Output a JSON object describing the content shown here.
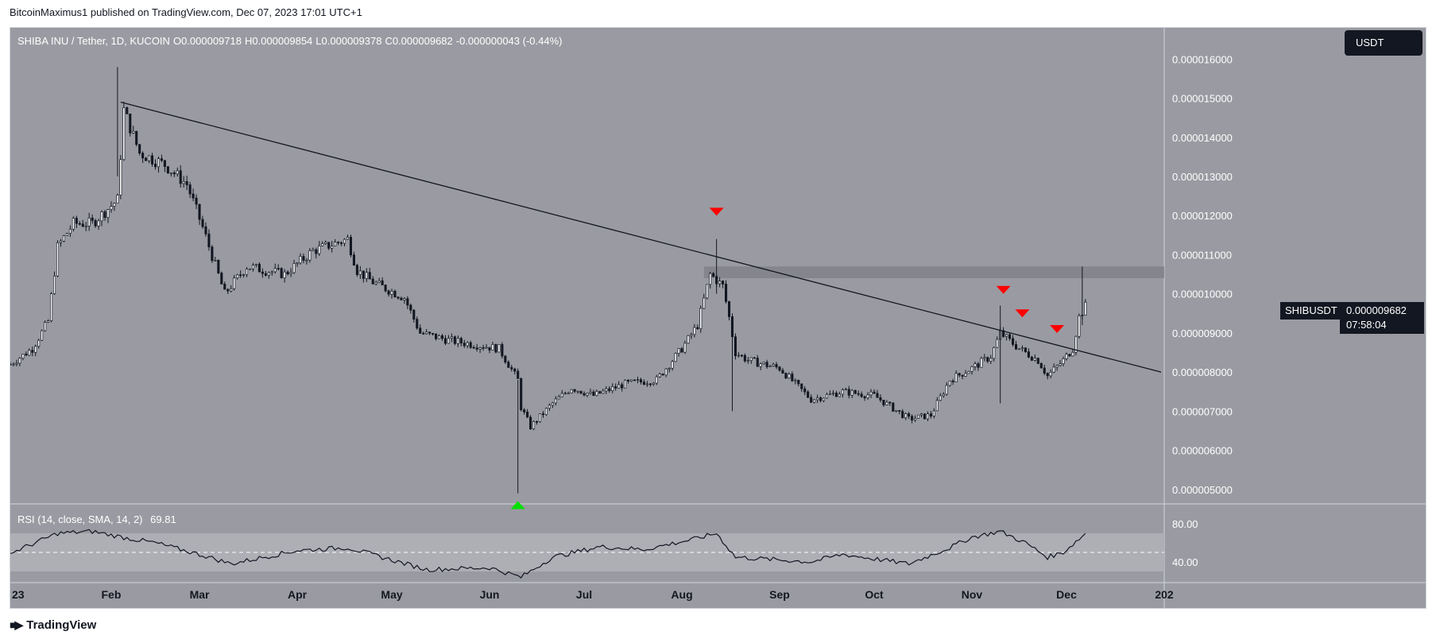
{
  "header": {
    "note": "BitcoinMaximus1 published on TradingView.com, Dec 07, 2023 17:01 UTC+1"
  },
  "ohlc": {
    "symbol_line": "SHIBA INU / Tether, 1D, KUCOIN",
    "o_label": "O",
    "o_value": "0.000009718",
    "h_label": "H",
    "h_value": "0.000009854",
    "l_label": "L",
    "l_value": "0.000009378",
    "c_label": "C",
    "c_value": "0.000009682",
    "change": "-0.000000043 (-0.44%)"
  },
  "currency": "USDT",
  "price_tag": {
    "ticker": "SHIBUSDT",
    "price": "0.000009682",
    "countdown": "07:58:04"
  },
  "rsi": {
    "legend": "RSI (14, close, SMA, 14, 2)",
    "value": "69.81",
    "upper_label": "80.00",
    "lower_label": "40.00"
  },
  "footer": {
    "brand": "TradingView"
  },
  "colors": {
    "background": "#9a9ba2",
    "candle": "#131722",
    "resistance_band": "#85868d",
    "rsi_band": "#aeafb5",
    "marker_down": "#ff0000",
    "marker_up": "#00e000"
  },
  "chart_data": {
    "type": "candlestick",
    "price_axis": {
      "ticks": [
        5e-06,
        6e-06,
        7e-06,
        8e-06,
        9e-06,
        1e-05,
        1.1e-05,
        1.2e-05,
        1.3e-05,
        1.4e-05,
        1.5e-05,
        1.6e-05
      ],
      "tick_labels": [
        "0.000005000",
        "0.000006000",
        "0.000007000",
        "0.000008000",
        "0.000009000",
        "0.000010000",
        "0.000011000",
        "0.000012000",
        "0.000013000",
        "0.000014000",
        "0.000015000",
        "0.000016000"
      ],
      "range": [
        4.65e-06,
        1.68e-05
      ]
    },
    "time_axis": {
      "labels": [
        "23",
        "Feb",
        "Mar",
        "Apr",
        "May",
        "Jun",
        "Jul",
        "Aug",
        "Sep",
        "Oct",
        "Nov",
        "Dec",
        "202"
      ],
      "dates": [
        "2023-01-01",
        "2023-02-01",
        "2023-03-01",
        "2023-04-01",
        "2023-05-01",
        "2023-06-01",
        "2023-07-01",
        "2023-08-01",
        "2023-09-01",
        "2023-10-01",
        "2023-11-01",
        "2023-12-01",
        "2024-01-01"
      ],
      "start": "2022-12-31",
      "end": "2024-01-01"
    },
    "series": [
      {
        "name": "SHIBUSDT",
        "points": [
          {
            "date": "2022-12-31",
            "close": 8.2e-06
          },
          {
            "date": "2023-01-07",
            "close": 8.6e-06
          },
          {
            "date": "2023-01-12",
            "close": 9.3e-06
          },
          {
            "date": "2023-01-15",
            "close": 1.12e-05
          },
          {
            "date": "2023-01-20",
            "close": 1.18e-05
          },
          {
            "date": "2023-01-26",
            "close": 1.18e-05
          },
          {
            "date": "2023-02-03",
            "close": 1.24e-05
          },
          {
            "date": "2023-02-05",
            "close": 1.47e-05
          },
          {
            "date": "2023-02-10",
            "close": 1.36e-05
          },
          {
            "date": "2023-02-18",
            "close": 1.33e-05
          },
          {
            "date": "2023-02-25",
            "close": 1.28e-05
          },
          {
            "date": "2023-03-02",
            "close": 1.17e-05
          },
          {
            "date": "2023-03-09",
            "close": 1e-05
          },
          {
            "date": "2023-03-16",
            "close": 1.07e-05
          },
          {
            "date": "2023-03-28",
            "close": 1.05e-05
          },
          {
            "date": "2023-04-06",
            "close": 1.11e-05
          },
          {
            "date": "2023-04-17",
            "close": 1.14e-05
          },
          {
            "date": "2023-04-20",
            "close": 1.06e-05
          },
          {
            "date": "2023-04-25",
            "close": 1.03e-05
          },
          {
            "date": "2023-05-05",
            "close": 9.9e-06
          },
          {
            "date": "2023-05-10",
            "close": 9e-06
          },
          {
            "date": "2023-05-20",
            "close": 8.8e-06
          },
          {
            "date": "2023-06-04",
            "close": 8.6e-06
          },
          {
            "date": "2023-06-10",
            "close": 7.8e-06
          },
          {
            "date": "2023-06-11",
            "close": 7.1e-06
          },
          {
            "date": "2023-06-14",
            "close": 6.6e-06
          },
          {
            "date": "2023-06-21",
            "close": 7.2e-06
          },
          {
            "date": "2023-06-27",
            "close": 7.6e-06
          },
          {
            "date": "2023-07-04",
            "close": 7.4e-06
          },
          {
            "date": "2023-07-14",
            "close": 7.7e-06
          },
          {
            "date": "2023-07-24",
            "close": 7.8e-06
          },
          {
            "date": "2023-08-01",
            "close": 8.6e-06
          },
          {
            "date": "2023-08-06",
            "close": 9.2e-06
          },
          {
            "date": "2023-08-10",
            "close": 1.05e-05
          },
          {
            "date": "2023-08-14",
            "close": 1.02e-05
          },
          {
            "date": "2023-08-16",
            "close": 9.4e-06
          },
          {
            "date": "2023-08-18",
            "close": 8.5e-06
          },
          {
            "date": "2023-08-22",
            "close": 8.3e-06
          },
          {
            "date": "2023-09-01",
            "close": 8.1e-06
          },
          {
            "date": "2023-09-11",
            "close": 7.3e-06
          },
          {
            "date": "2023-09-21",
            "close": 7.5e-06
          },
          {
            "date": "2023-10-01",
            "close": 7.4e-06
          },
          {
            "date": "2023-10-12",
            "close": 6.8e-06
          },
          {
            "date": "2023-10-19",
            "close": 6.9e-06
          },
          {
            "date": "2023-10-25",
            "close": 7.8e-06
          },
          {
            "date": "2023-11-01",
            "close": 8.1e-06
          },
          {
            "date": "2023-11-07",
            "close": 8.4e-06
          },
          {
            "date": "2023-11-10",
            "close": 9e-06
          },
          {
            "date": "2023-11-16",
            "close": 8.6e-06
          },
          {
            "date": "2023-11-22",
            "close": 8.3e-06
          },
          {
            "date": "2023-11-25",
            "close": 7.9e-06
          },
          {
            "date": "2023-11-30",
            "close": 8.3e-06
          },
          {
            "date": "2023-12-03",
            "close": 8.6e-06
          },
          {
            "date": "2023-12-05",
            "close": 9.4e-06
          },
          {
            "date": "2023-12-07",
            "close": 9.682e-06
          }
        ]
      }
    ],
    "trendline": {
      "from": {
        "date": "2023-02-04",
        "price": 1.49e-05
      },
      "to": {
        "date": "2023-12-31",
        "price": 8e-06
      }
    },
    "resistance_zone": {
      "from": "2023-08-08",
      "low": 1.04e-05,
      "high": 1.07e-05
    },
    "markers": [
      {
        "type": "down",
        "date": "2023-08-12",
        "price": 1.21e-05
      },
      {
        "type": "down",
        "date": "2023-11-11",
        "price": 1.01e-05
      },
      {
        "type": "down",
        "date": "2023-11-17",
        "price": 9.5e-06
      },
      {
        "type": "down",
        "date": "2023-11-28",
        "price": 9.1e-06
      },
      {
        "type": "up",
        "date": "2023-06-10",
        "price": 4.6e-06
      }
    ],
    "rsi_series": [
      {
        "date": "2022-12-31",
        "value": 49
      },
      {
        "date": "2023-01-15",
        "value": 70
      },
      {
        "date": "2023-01-26",
        "value": 72
      },
      {
        "date": "2023-02-06",
        "value": 65
      },
      {
        "date": "2023-02-15",
        "value": 60
      },
      {
        "date": "2023-03-02",
        "value": 47
      },
      {
        "date": "2023-03-11",
        "value": 38
      },
      {
        "date": "2023-04-01",
        "value": 52
      },
      {
        "date": "2023-04-17",
        "value": 55
      },
      {
        "date": "2023-05-01",
        "value": 42
      },
      {
        "date": "2023-05-12",
        "value": 32
      },
      {
        "date": "2023-06-01",
        "value": 34
      },
      {
        "date": "2023-06-11",
        "value": 24
      },
      {
        "date": "2023-06-21",
        "value": 45
      },
      {
        "date": "2023-07-06",
        "value": 56
      },
      {
        "date": "2023-07-20",
        "value": 53
      },
      {
        "date": "2023-08-05",
        "value": 64
      },
      {
        "date": "2023-08-12",
        "value": 70
      },
      {
        "date": "2023-08-18",
        "value": 45
      },
      {
        "date": "2023-09-11",
        "value": 40
      },
      {
        "date": "2023-09-21",
        "value": 48
      },
      {
        "date": "2023-10-12",
        "value": 38
      },
      {
        "date": "2023-10-25",
        "value": 55
      },
      {
        "date": "2023-11-01",
        "value": 66
      },
      {
        "date": "2023-11-10",
        "value": 72
      },
      {
        "date": "2023-11-18",
        "value": 60
      },
      {
        "date": "2023-11-25",
        "value": 45
      },
      {
        "date": "2023-11-30",
        "value": 50
      },
      {
        "date": "2023-12-07",
        "value": 69.81
      }
    ],
    "rsi_axis": {
      "range": [
        20,
        100
      ],
      "bands": [
        30,
        70
      ],
      "mid": 50,
      "tick_values": [
        80,
        40
      ]
    }
  }
}
